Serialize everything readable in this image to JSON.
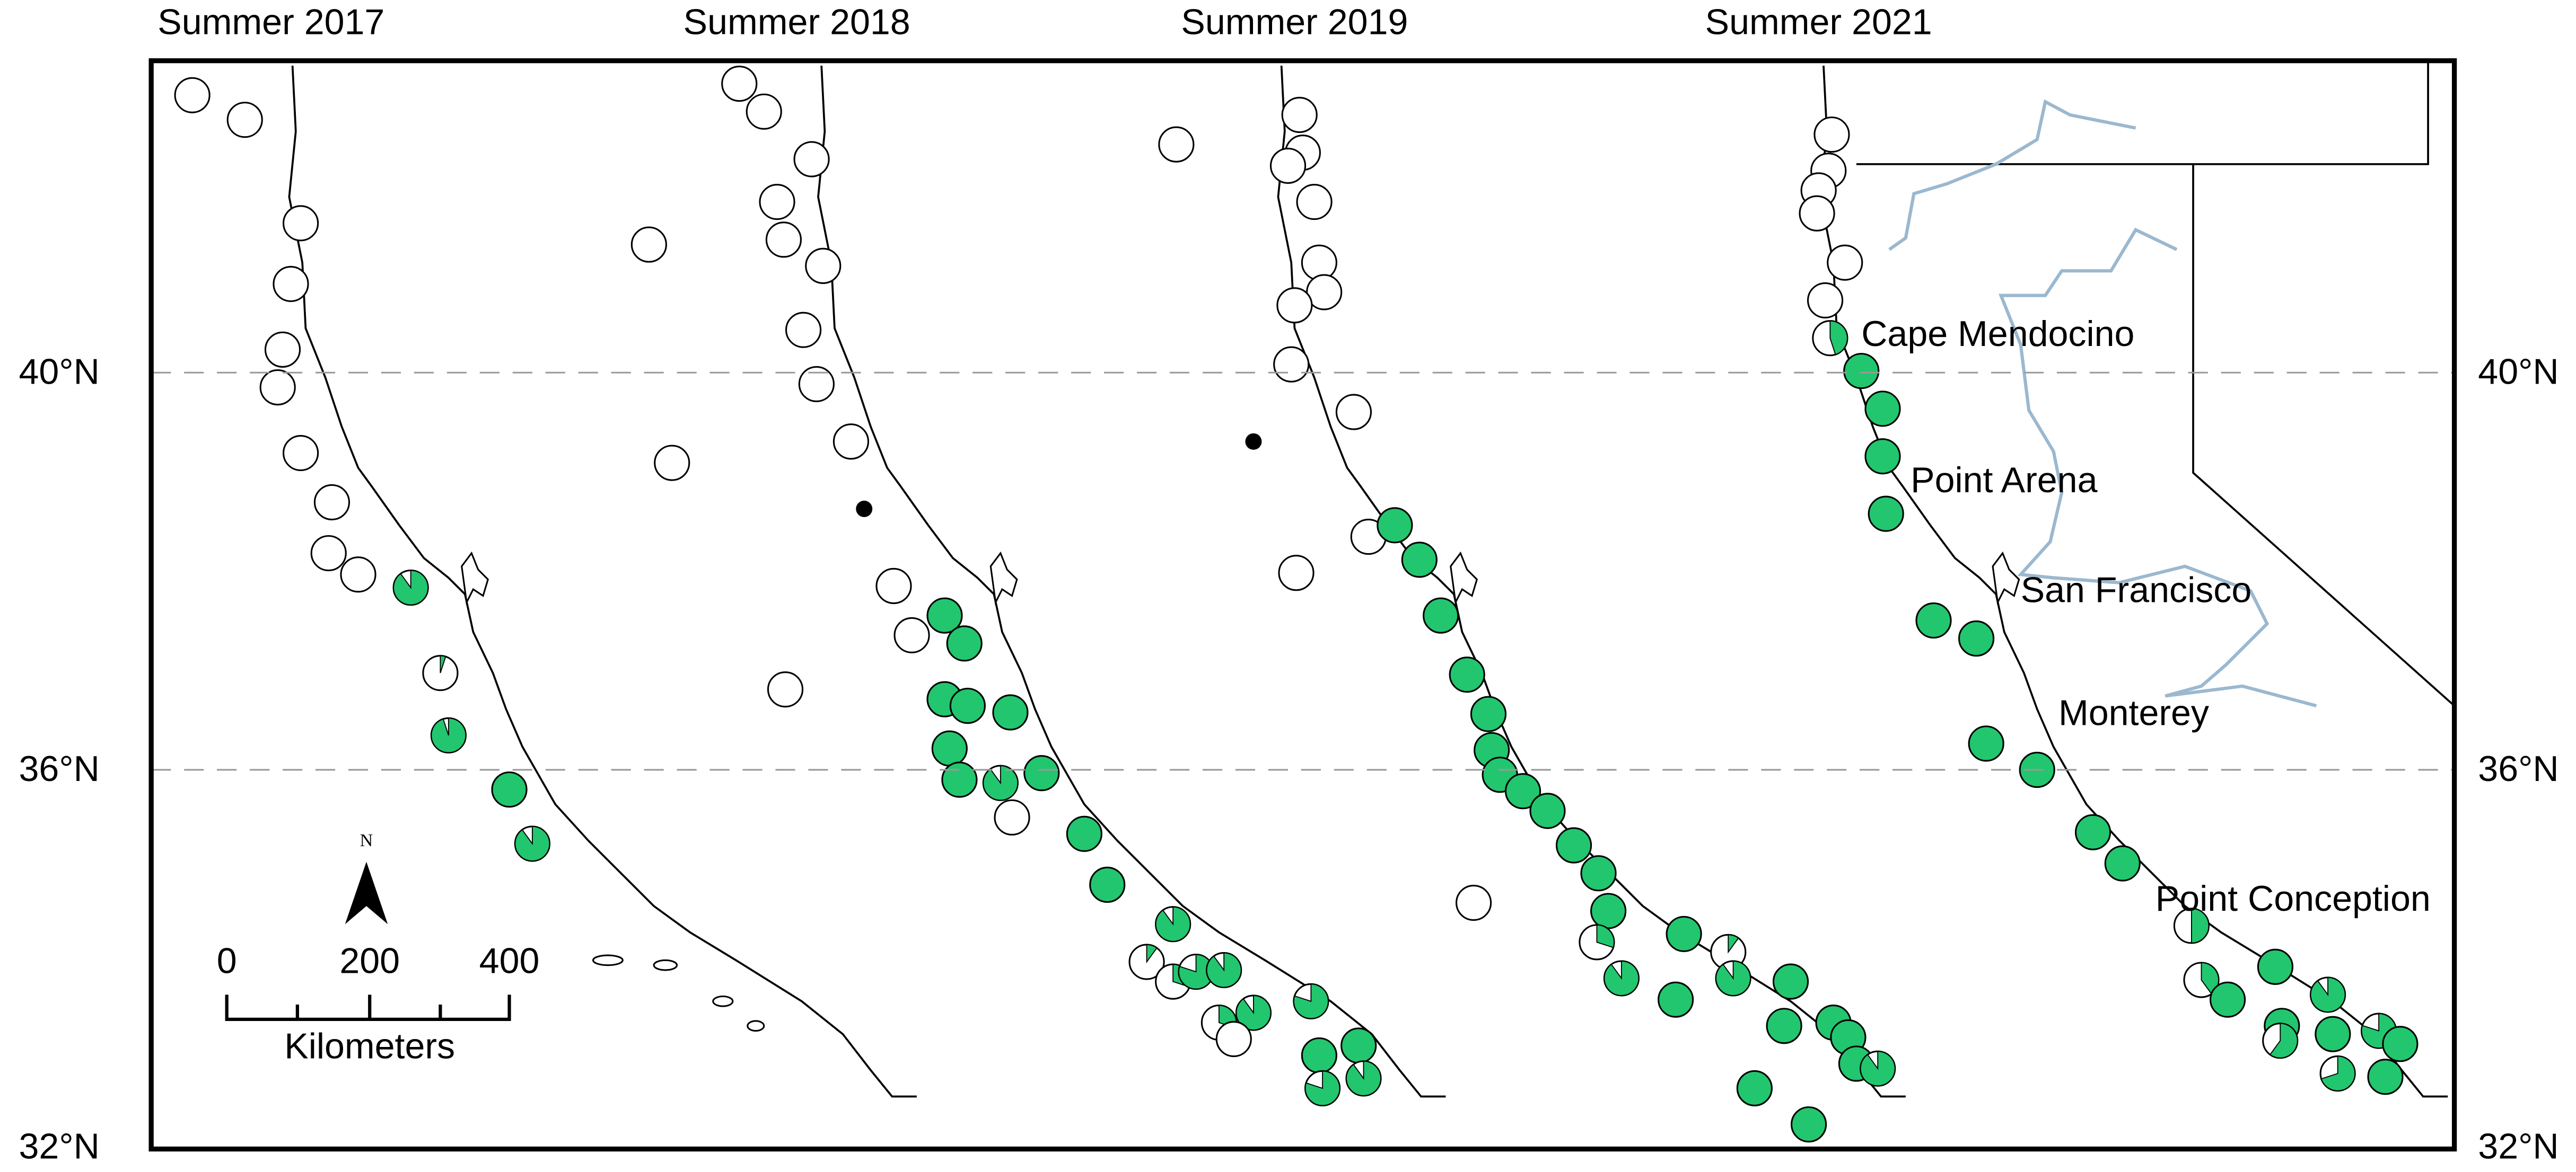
{
  "panels": [
    {
      "title": "Summer 2017"
    },
    {
      "title": "Summer 2018"
    },
    {
      "title": "Summer 2019"
    },
    {
      "title": "Summer 2021"
    }
  ],
  "latitude_labels": [
    "40°N",
    "36°N",
    "32°N"
  ],
  "places": [
    "Cape Mendocino",
    "Point Arena",
    "San Francisco",
    "Monterey",
    "Point Conception"
  ],
  "scale_bar": {
    "ticks": [
      "0",
      "200",
      "400"
    ],
    "unit": "Kilometers"
  },
  "north": "N"
}
